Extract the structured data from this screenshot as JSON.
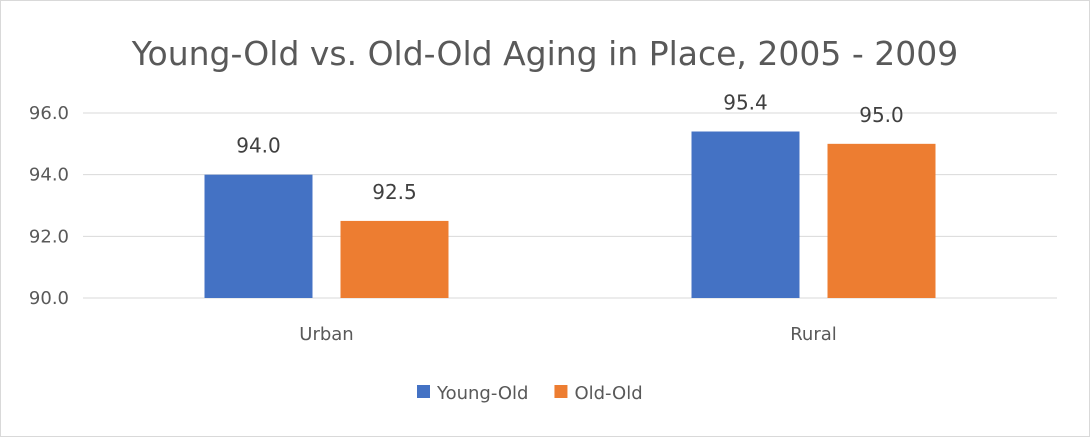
{
  "chart_data": {
    "type": "bar",
    "title": "Young-Old vs. Old-Old Aging in Place, 2005 - 2009",
    "categories": [
      "Urban",
      "Rural"
    ],
    "series": [
      {
        "name": "Young-Old",
        "values": [
          94.0,
          95.4
        ],
        "labels": [
          "94.0",
          "95.4"
        ],
        "color": "#4472c4"
      },
      {
        "name": "Old-Old",
        "values": [
          92.5,
          95.0
        ],
        "labels": [
          "92.5",
          "95.0"
        ],
        "color": "#ed7d31"
      }
    ],
    "ylim": [
      90,
      96
    ],
    "yticks": [
      "90.0",
      "92.0",
      "94.0",
      "96.0"
    ],
    "ytick_values": [
      90,
      92,
      94,
      96
    ],
    "grid": true,
    "legend_position": "bottom"
  }
}
